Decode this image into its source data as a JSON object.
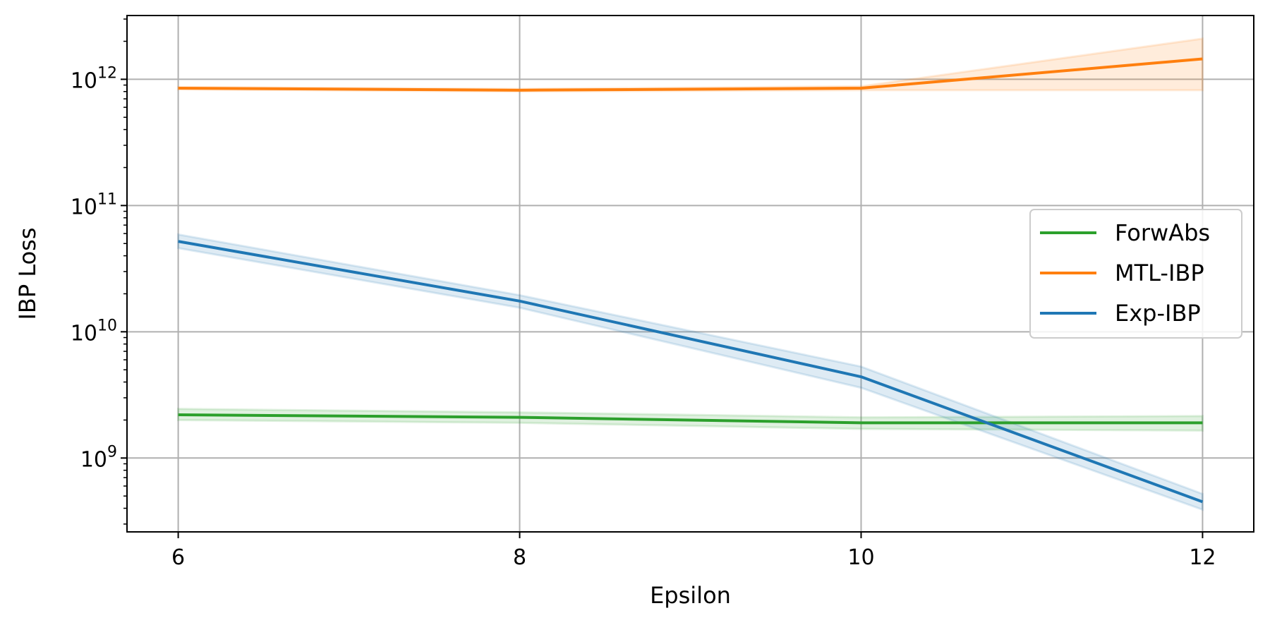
{
  "chart_data": {
    "type": "line",
    "xlabel": "Epsilon",
    "ylabel": "IBP Loss",
    "yscale": "log",
    "x": [
      6,
      8,
      10,
      12
    ],
    "xlim": [
      5.7,
      12.3
    ],
    "ylim": [
      260000000.0,
      3200000000000.0
    ],
    "xticks": [
      6,
      8,
      10,
      12
    ],
    "xtick_labels": [
      "6",
      "8",
      "10",
      "12"
    ],
    "yticks": [
      1000000000.0,
      10000000000.0,
      100000000000.0,
      1000000000000.0
    ],
    "ytick_labels": [
      {
        "base": "10",
        "exp": "9"
      },
      {
        "base": "10",
        "exp": "10"
      },
      {
        "base": "10",
        "exp": "11"
      },
      {
        "base": "10",
        "exp": "12"
      }
    ],
    "grid": true,
    "legend_position": "center-right",
    "series": [
      {
        "name": "ForwAbs",
        "color": "#2ca02c",
        "values": [
          2200000000.0,
          2100000000.0,
          1900000000.0,
          1900000000.0
        ],
        "lower": [
          2000000000.0,
          1900000000.0,
          1700000000.0,
          1650000000.0
        ],
        "upper": [
          2450000000.0,
          2300000000.0,
          2100000000.0,
          2150000000.0
        ]
      },
      {
        "name": "MTL-IBP",
        "color": "#ff7f0e",
        "values": [
          850000000000.0,
          820000000000.0,
          850000000000.0,
          1450000000000.0
        ],
        "lower": [
          830000000000.0,
          800000000000.0,
          820000000000.0,
          820000000000.0
        ],
        "upper": [
          870000000000.0,
          840000000000.0,
          880000000000.0,
          2100000000000.0
        ]
      },
      {
        "name": "Exp-IBP",
        "color": "#1f77b4",
        "values": [
          52000000000.0,
          17500000000.0,
          4400000000.0,
          450000000.0
        ],
        "lower": [
          46000000000.0,
          15500000000.0,
          3600000000.0,
          390000000.0
        ],
        "upper": [
          59000000000.0,
          19500000000.0,
          5300000000.0,
          520000000.0
        ]
      }
    ]
  }
}
